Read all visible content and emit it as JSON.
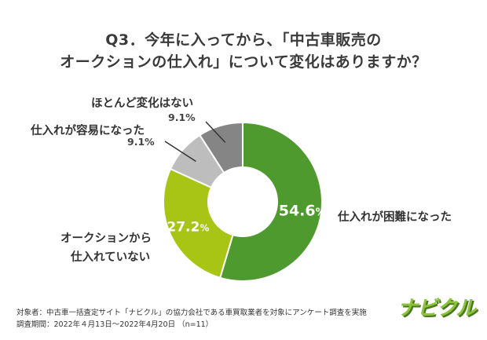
{
  "title_line1": "Q3．今年に入ってから、「中古車販売の",
  "title_line2": "オークションの仕入れ」について変化はありますか？",
  "chart_data": {
    "type": "pie",
    "style": "donut",
    "slices": [
      {
        "label": "仕入れが困難になった",
        "value": 54.6,
        "value_text": "54.6%",
        "color": "#4f9a2f"
      },
      {
        "label": "オークションから仕入れていない",
        "value": 27.2,
        "value_text": "27.2%",
        "color": "#a8c414"
      },
      {
        "label": "仕入れが容易になった",
        "value": 9.1,
        "value_text": "9.1%",
        "color": "#bdbdbd"
      },
      {
        "label": "ほとんど変化はない",
        "value": 9.1,
        "value_text": "9.1%",
        "color": "#858585"
      }
    ]
  },
  "labels": {
    "difficult": "仕入れが困難になった",
    "not_buying_line1": "オークションから",
    "not_buying_line2": "仕入れていない",
    "easier": "仕入れが容易になった",
    "no_change": "ほとんど変化はない"
  },
  "footnote": {
    "line1": "対象者：中古車一括査定サイト「ナビクル」の協力会社である車買取業者を対象にアンケート調査を実施",
    "line2": "調査期間：2022年４月13日〜2022年4月20日 （n=11）"
  },
  "logo_text": "ナビクル"
}
